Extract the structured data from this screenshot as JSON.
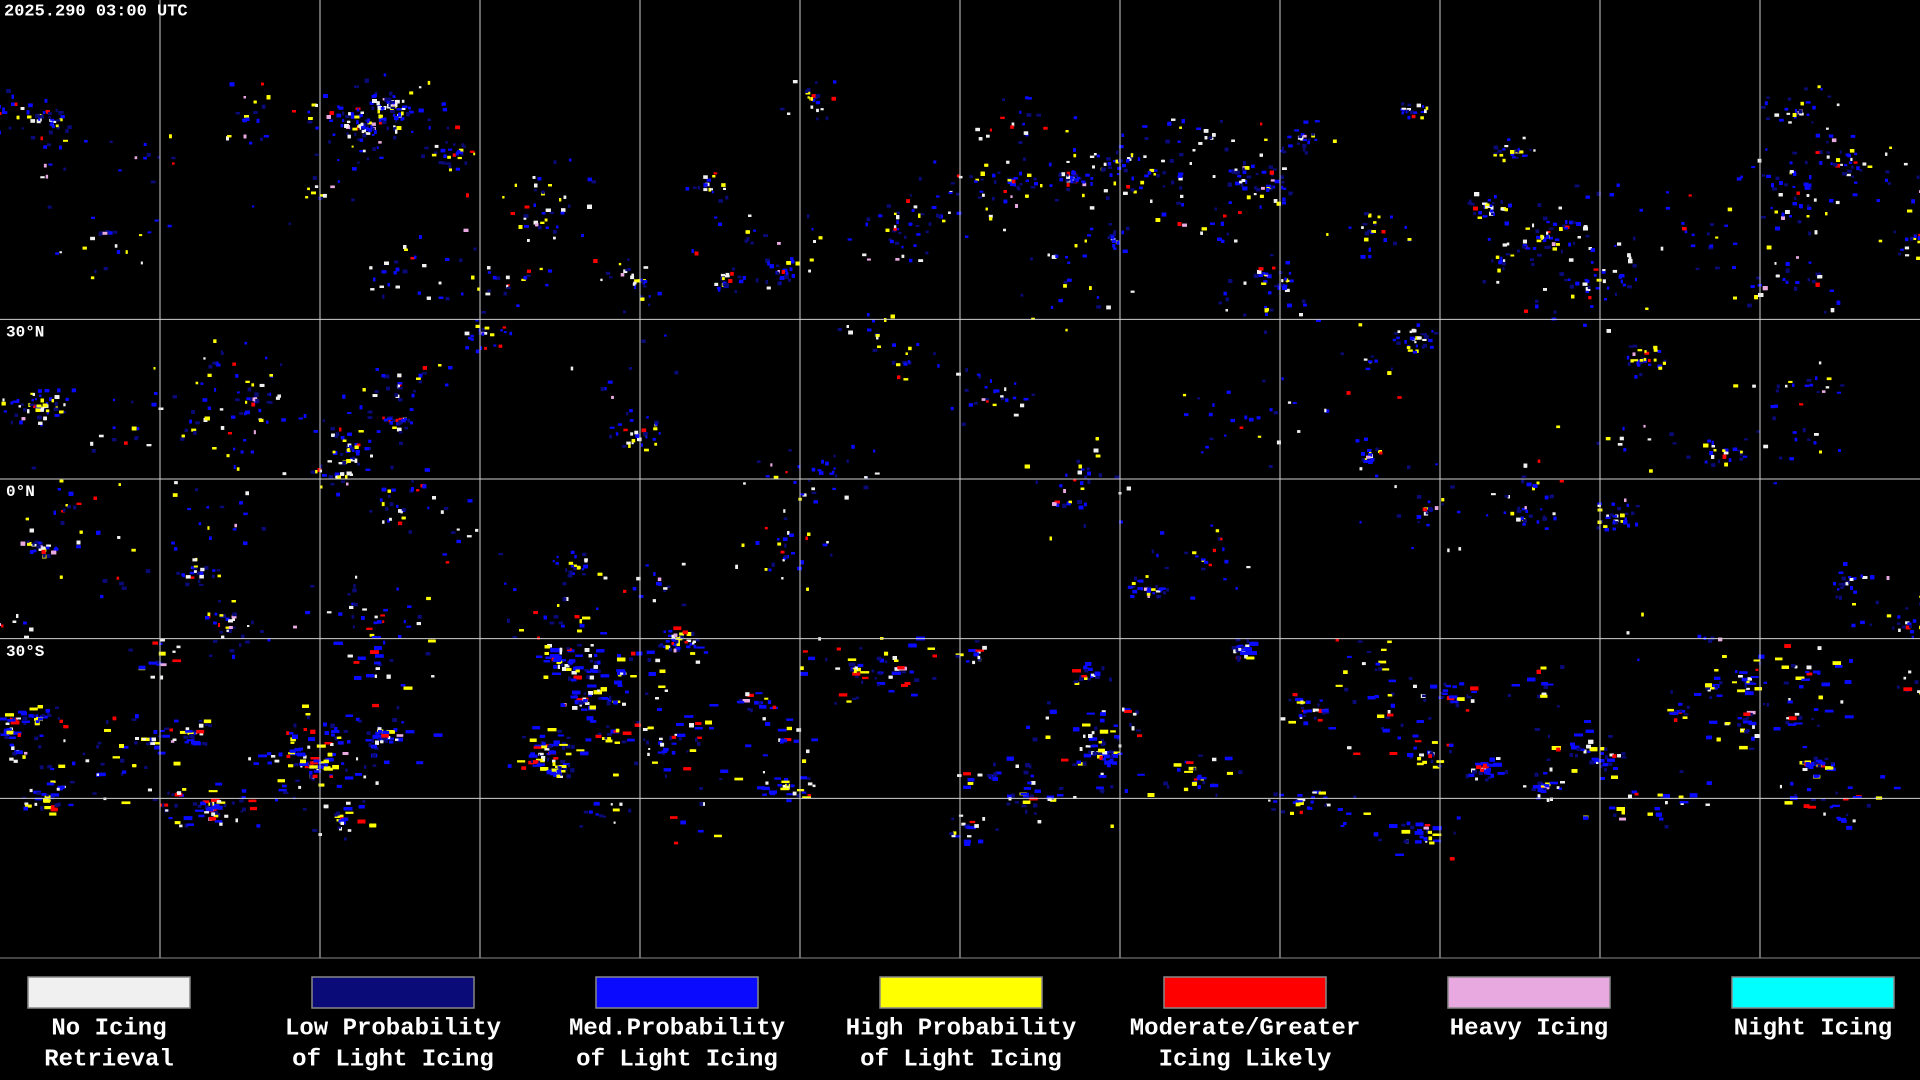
{
  "header": {
    "timestamp": "2025.290 03:00 UTC"
  },
  "map": {
    "latitude_labels": [
      "30°N",
      "0°N",
      "30°S"
    ]
  },
  "legend": {
    "items": [
      {
        "label": [
          "No Icing",
          "Retrieval"
        ],
        "color": "#f0f0f0"
      },
      {
        "label": [
          "Low Probability",
          "of Light Icing"
        ],
        "color": "#0a0a78"
      },
      {
        "label": [
          "Med.Probability",
          "of Light Icing"
        ],
        "color": "#0a0aff"
      },
      {
        "label": [
          "High Probability",
          "of Light Icing"
        ],
        "color": "#ffff00"
      },
      {
        "label": [
          "Moderate/Greater",
          "Icing Likely"
        ],
        "color": "#ff0000"
      },
      {
        "label": [
          "Heavy Icing"
        ],
        "color": "#e8a8e0"
      },
      {
        "label": [
          "Night Icing"
        ],
        "color": "#00ffff"
      }
    ]
  }
}
